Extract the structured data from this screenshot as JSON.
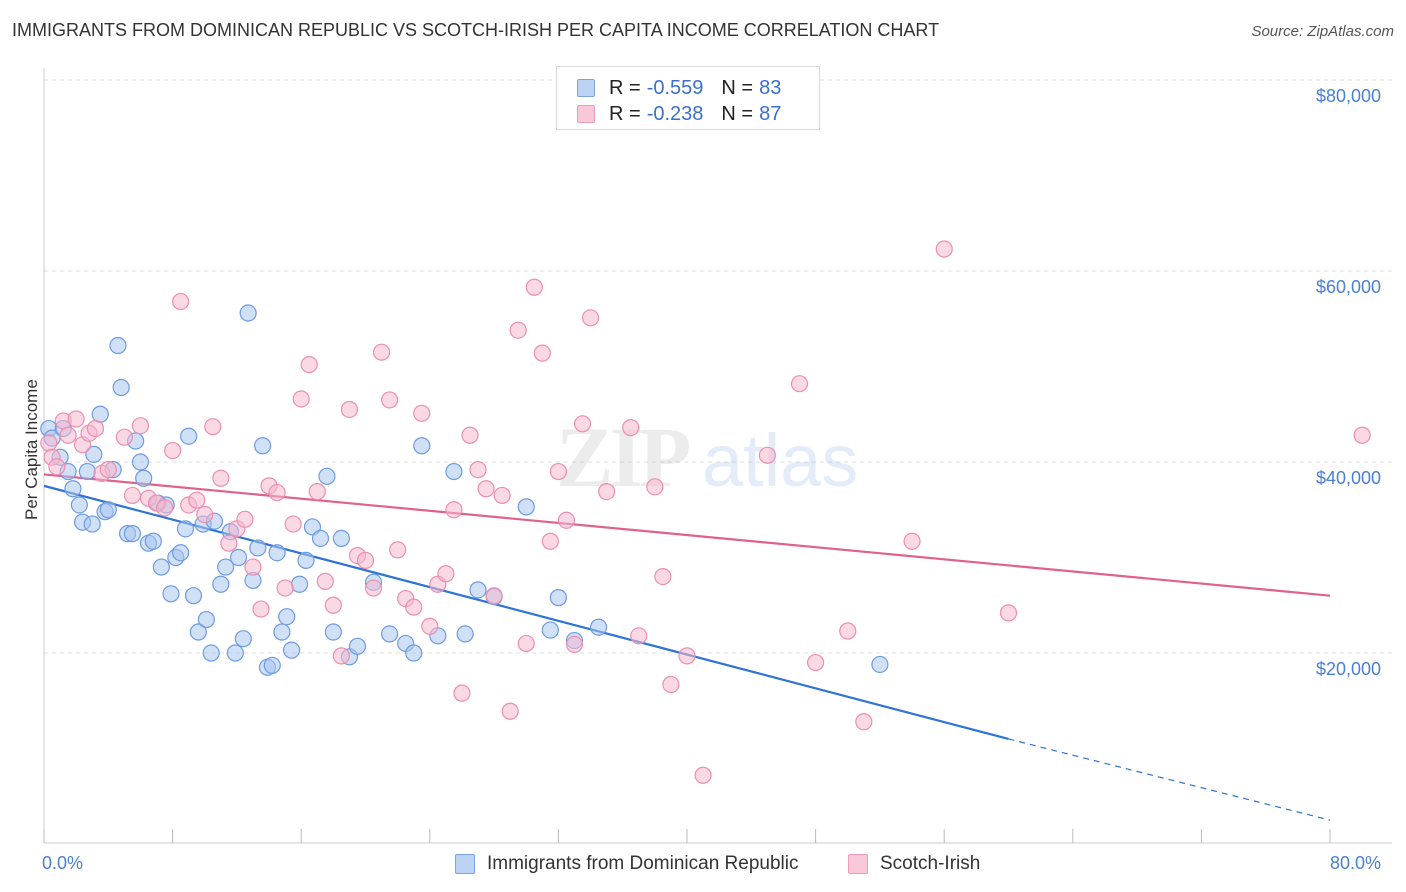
{
  "header": {
    "title": "IMMIGRANTS FROM DOMINICAN REPUBLIC VS SCOTCH-IRISH PER CAPITA INCOME CORRELATION CHART",
    "source": "Source: ZipAtlas.com"
  },
  "legend_top": {
    "rows": [
      {
        "r_label": "R =",
        "r_value": "-0.559",
        "n_label": "N =",
        "n_value": "83"
      },
      {
        "r_label": "R =",
        "r_value": "-0.238",
        "n_label": "N =",
        "n_value": "87"
      }
    ]
  },
  "legend_bottom": {
    "items": [
      "Immigrants from Dominican Republic",
      "Scotch-Irish"
    ]
  },
  "axes": {
    "ylabel": "Per Capita Income",
    "x_min_label": "0.0%",
    "x_max_label": "80.0%",
    "y_ticks": [
      "$20,000",
      "$40,000",
      "$60,000",
      "$80,000"
    ]
  },
  "colors": {
    "blue_fill": "#a8c6f0",
    "blue_stroke": "#6f9be0",
    "blue_line": "#2f74d4",
    "pink_fill": "#f6b8cd",
    "pink_stroke": "#ec8fb0",
    "pink_line": "#e0608e",
    "axis_text": "#4a7fd1",
    "grid": "#dcdcdc"
  },
  "chart_data": {
    "type": "scatter",
    "xlim": [
      0,
      80
    ],
    "ylim": [
      0,
      82000
    ],
    "x_unit": "%",
    "y_unit": "USD",
    "series": [
      {
        "name": "Immigrants from Dominican Republic",
        "color": "#6f9be0",
        "points": [
          [
            0.3,
            43500
          ],
          [
            0.5,
            42500
          ],
          [
            1.0,
            40500
          ],
          [
            1.2,
            43500
          ],
          [
            1.5,
            39000
          ],
          [
            1.8,
            37200
          ],
          [
            2.2,
            35500
          ],
          [
            2.4,
            33700
          ],
          [
            2.7,
            39000
          ],
          [
            3.0,
            33500
          ],
          [
            3.1,
            40800
          ],
          [
            3.5,
            45000
          ],
          [
            3.8,
            34800
          ],
          [
            4.0,
            35000
          ],
          [
            4.3,
            39200
          ],
          [
            4.6,
            52200
          ],
          [
            4.8,
            47800
          ],
          [
            5.2,
            32500
          ],
          [
            5.5,
            32500
          ],
          [
            5.7,
            42200
          ],
          [
            6.0,
            40000
          ],
          [
            6.2,
            38300
          ],
          [
            6.5,
            31500
          ],
          [
            6.8,
            31700
          ],
          [
            7.1,
            35700
          ],
          [
            7.3,
            29000
          ],
          [
            7.6,
            35500
          ],
          [
            7.9,
            26200
          ],
          [
            8.2,
            30000
          ],
          [
            8.5,
            30500
          ],
          [
            8.8,
            33000
          ],
          [
            9.0,
            42700
          ],
          [
            9.3,
            26000
          ],
          [
            9.6,
            22200
          ],
          [
            9.9,
            33500
          ],
          [
            10.1,
            23500
          ],
          [
            10.4,
            20000
          ],
          [
            10.6,
            33800
          ],
          [
            11.0,
            27200
          ],
          [
            11.3,
            29000
          ],
          [
            11.6,
            32700
          ],
          [
            11.9,
            20000
          ],
          [
            12.1,
            30000
          ],
          [
            12.4,
            21500
          ],
          [
            12.7,
            55600
          ],
          [
            13.0,
            27600
          ],
          [
            13.3,
            31000
          ],
          [
            13.6,
            41700
          ],
          [
            13.9,
            18500
          ],
          [
            14.2,
            18700
          ],
          [
            14.5,
            30500
          ],
          [
            14.8,
            22200
          ],
          [
            15.1,
            23800
          ],
          [
            15.4,
            20300
          ],
          [
            15.9,
            27200
          ],
          [
            16.3,
            29700
          ],
          [
            16.7,
            33200
          ],
          [
            17.2,
            32000
          ],
          [
            17.6,
            38500
          ],
          [
            18.0,
            22200
          ],
          [
            18.5,
            32000
          ],
          [
            19.0,
            19600
          ],
          [
            19.5,
            20700
          ],
          [
            20.5,
            27400
          ],
          [
            21.5,
            22000
          ],
          [
            22.5,
            21000
          ],
          [
            23.0,
            20000
          ],
          [
            23.5,
            41700
          ],
          [
            24.5,
            21800
          ],
          [
            25.5,
            39000
          ],
          [
            26.2,
            22000
          ],
          [
            27.0,
            26600
          ],
          [
            28.0,
            25900
          ],
          [
            30.0,
            35300
          ],
          [
            31.5,
            22400
          ],
          [
            32.0,
            25800
          ],
          [
            33.0,
            21300
          ],
          [
            34.5,
            22700
          ],
          [
            52.0,
            18800
          ]
        ]
      },
      {
        "name": "Scotch-Irish",
        "color": "#ec8fb0",
        "points": [
          [
            0.3,
            42000
          ],
          [
            0.5,
            40500
          ],
          [
            0.8,
            39500
          ],
          [
            1.2,
            44300
          ],
          [
            1.5,
            42800
          ],
          [
            2.0,
            44500
          ],
          [
            2.4,
            41800
          ],
          [
            2.8,
            43000
          ],
          [
            3.2,
            43500
          ],
          [
            3.6,
            38800
          ],
          [
            4.0,
            39200
          ],
          [
            5.0,
            42600
          ],
          [
            5.5,
            36500
          ],
          [
            6.0,
            43800
          ],
          [
            6.5,
            36200
          ],
          [
            7.0,
            35700
          ],
          [
            7.5,
            35200
          ],
          [
            8.0,
            41200
          ],
          [
            8.5,
            56800
          ],
          [
            9.0,
            35500
          ],
          [
            9.5,
            36000
          ],
          [
            10.0,
            34500
          ],
          [
            10.5,
            43700
          ],
          [
            11.0,
            38300
          ],
          [
            11.5,
            31500
          ],
          [
            12.0,
            33000
          ],
          [
            12.5,
            34000
          ],
          [
            13.0,
            29000
          ],
          [
            13.5,
            24600
          ],
          [
            14.0,
            37500
          ],
          [
            14.5,
            36800
          ],
          [
            15.0,
            26800
          ],
          [
            15.5,
            33500
          ],
          [
            16.0,
            46600
          ],
          [
            16.5,
            50200
          ],
          [
            17.0,
            36900
          ],
          [
            17.5,
            27500
          ],
          [
            18.0,
            25000
          ],
          [
            18.5,
            19700
          ],
          [
            19.0,
            45500
          ],
          [
            19.5,
            30200
          ],
          [
            20.0,
            29700
          ],
          [
            20.5,
            26800
          ],
          [
            21.0,
            51500
          ],
          [
            21.5,
            46500
          ],
          [
            22.0,
            30800
          ],
          [
            22.5,
            25700
          ],
          [
            23.0,
            24800
          ],
          [
            23.5,
            45100
          ],
          [
            24.0,
            22800
          ],
          [
            24.5,
            27200
          ],
          [
            25.0,
            28300
          ],
          [
            25.5,
            35000
          ],
          [
            26.0,
            15800
          ],
          [
            26.5,
            42800
          ],
          [
            27.0,
            39200
          ],
          [
            27.5,
            37200
          ],
          [
            28.0,
            26000
          ],
          [
            28.5,
            36500
          ],
          [
            29.0,
            13900
          ],
          [
            29.5,
            53800
          ],
          [
            30.0,
            21000
          ],
          [
            30.5,
            58300
          ],
          [
            31.0,
            51400
          ],
          [
            31.5,
            31700
          ],
          [
            32.0,
            39000
          ],
          [
            32.5,
            33900
          ],
          [
            33.0,
            20900
          ],
          [
            33.5,
            44000
          ],
          [
            34.0,
            55100
          ],
          [
            35.0,
            36900
          ],
          [
            36.5,
            43600
          ],
          [
            37.0,
            21800
          ],
          [
            38.0,
            37400
          ],
          [
            38.5,
            28000
          ],
          [
            39.0,
            16700
          ],
          [
            40.0,
            19700
          ],
          [
            41.0,
            7200
          ],
          [
            45.0,
            40700
          ],
          [
            47.0,
            48200
          ],
          [
            48.0,
            19000
          ],
          [
            50.0,
            22300
          ],
          [
            51.0,
            12800
          ],
          [
            54.0,
            31700
          ],
          [
            56.0,
            62300
          ],
          [
            60.0,
            24200
          ],
          [
            82.0,
            42800
          ]
        ]
      }
    ],
    "trendlines": [
      {
        "series": "Immigrants from Dominican Republic",
        "x": [
          0,
          60
        ],
        "y": [
          37500,
          11000
        ],
        "dashed_x": [
          60,
          80
        ],
        "dashed_y": [
          11000,
          2500
        ]
      },
      {
        "series": "Scotch-Irish",
        "x": [
          0,
          80
        ],
        "y": [
          38700,
          26000
        ]
      }
    ]
  }
}
